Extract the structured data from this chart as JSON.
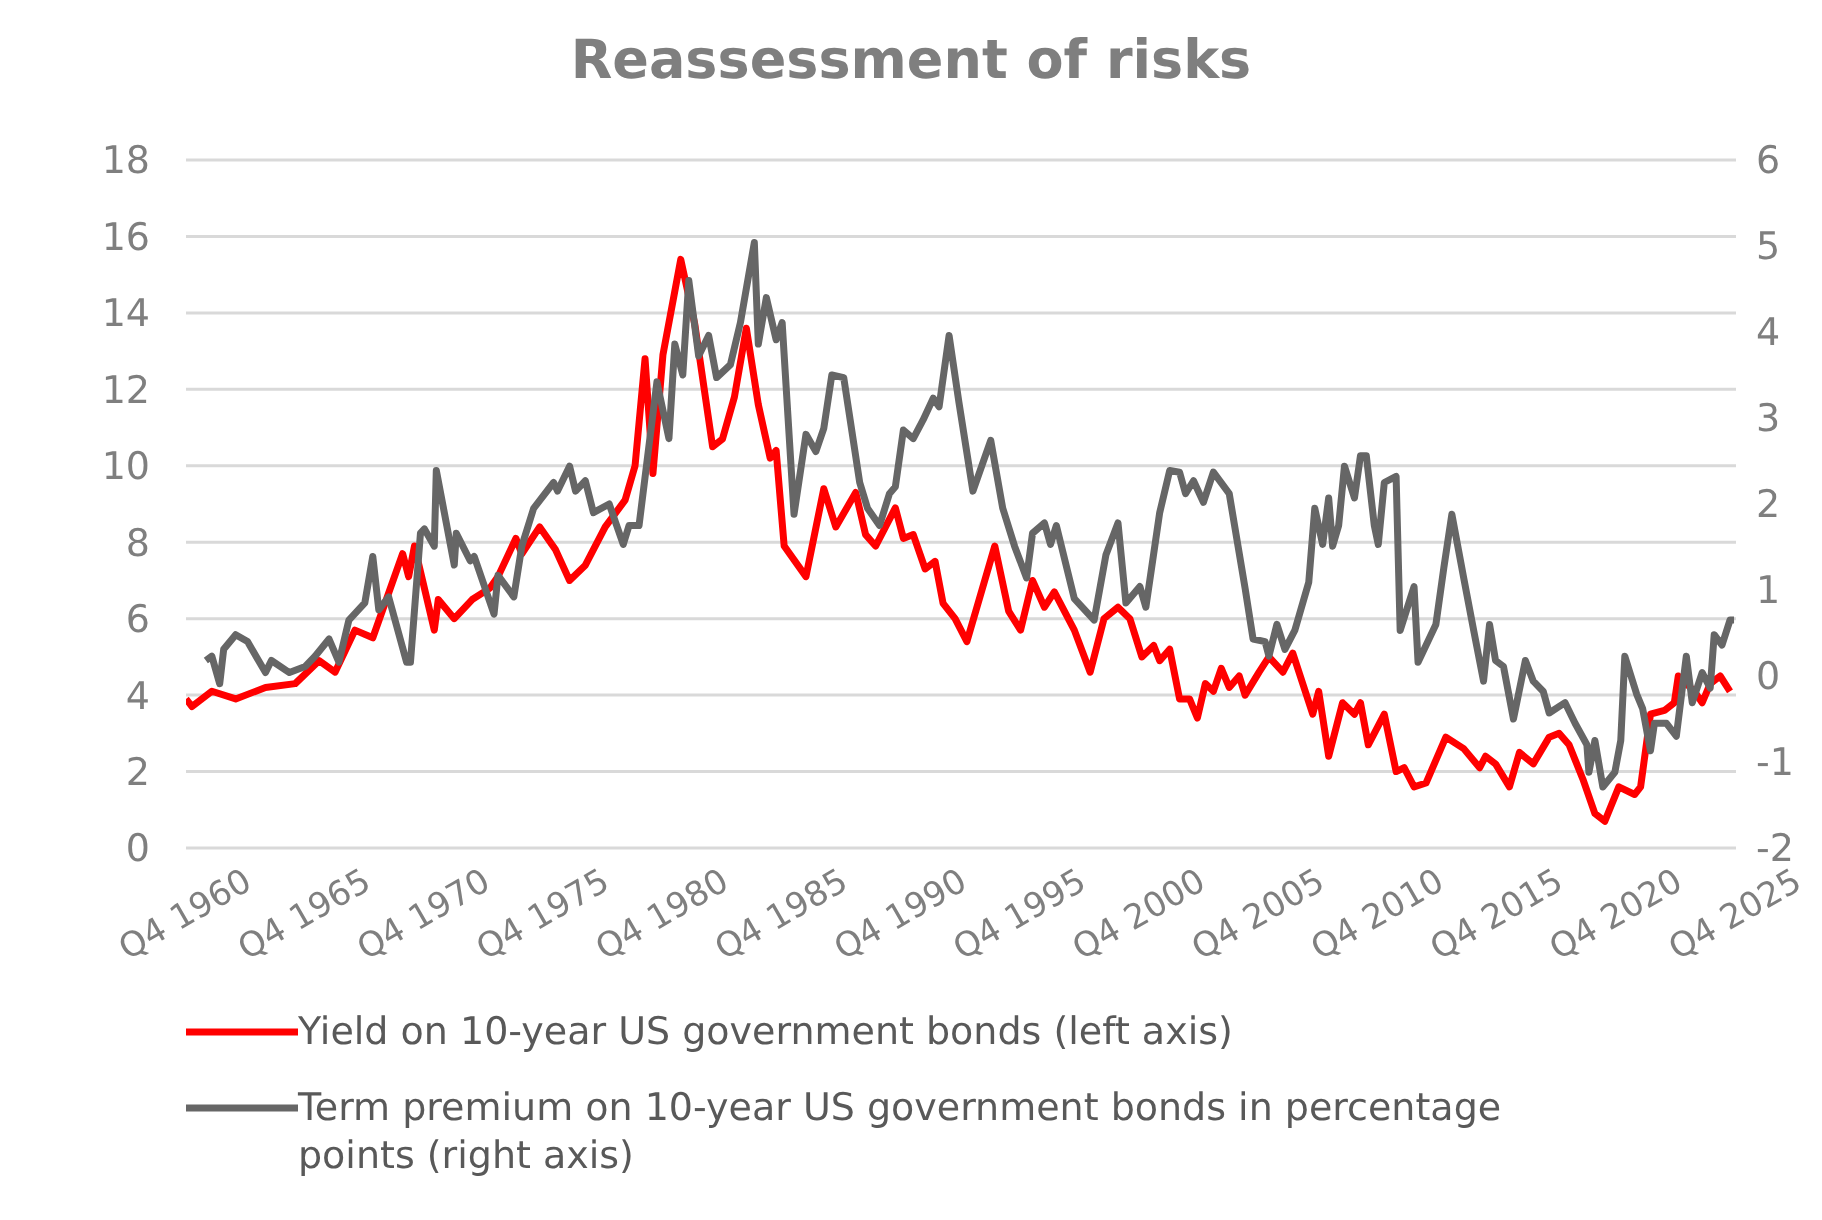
{
  "chart_data": {
    "type": "line",
    "title": "Reassessment of risks",
    "xlim": [
      "1960-10",
      "2025-10"
    ],
    "xticks": [
      {
        "value": "1960-10",
        "label": "Q4 1960"
      },
      {
        "value": "1965-10",
        "label": "Q4 1965"
      },
      {
        "value": "1970-10",
        "label": "Q4 1970"
      },
      {
        "value": "1975-10",
        "label": "Q4 1975"
      },
      {
        "value": "1980-10",
        "label": "Q4 1980"
      },
      {
        "value": "1985-10",
        "label": "Q4 1985"
      },
      {
        "value": "1990-10",
        "label": "Q4 1990"
      },
      {
        "value": "1995-10",
        "label": "Q4 1995"
      },
      {
        "value": "2000-10",
        "label": "Q4 2000"
      },
      {
        "value": "2005-10",
        "label": "Q4 2005"
      },
      {
        "value": "2010-10",
        "label": "Q4 2010"
      },
      {
        "value": "2015-10",
        "label": "Q4 2015"
      },
      {
        "value": "2020-10",
        "label": "Q4 2020"
      },
      {
        "value": "2025-10",
        "label": "Q4 2025"
      }
    ],
    "ylim": [
      0,
      18
    ],
    "yticks": [
      0,
      2,
      4,
      6,
      8,
      10,
      12,
      14,
      16,
      18
    ],
    "y2lim": [
      -2,
      6
    ],
    "y2ticks": [
      -2,
      -1,
      0,
      1,
      2,
      3,
      4,
      5,
      6
    ],
    "grid": "y",
    "legend": "bottom",
    "marker": "none",
    "line_style": "solid",
    "series": [
      {
        "name": "Yield on 10-year US government bonds (left axis)",
        "color": "#ff0000",
        "x": [
          "1960-10",
          "1961-01",
          "1961-11",
          "1962-11",
          "1964-02",
          "1965-05",
          "1966-05",
          "1967-01",
          "1967-11",
          "1968-08",
          "1969-11",
          "1970-02",
          "1970-05",
          "1971-03",
          "1971-05",
          "1972-01",
          "1972-10",
          "1973-07",
          "1973-11",
          "1974-08",
          "1974-11",
          "1975-08",
          "1976-04",
          "1976-11",
          "1977-07",
          "1978-05",
          "1979-03",
          "1979-08",
          "1980-01",
          "1980-05",
          "1980-10",
          "1981-07",
          "1982-02",
          "1982-11",
          "1983-04",
          "1983-10",
          "1984-04",
          "1984-10",
          "1985-04",
          "1985-07",
          "1985-11",
          "1986-10",
          "1987-07",
          "1988-01",
          "1988-11",
          "1989-04",
          "1989-09",
          "1990-07",
          "1990-11",
          "1991-04",
          "1991-10",
          "1992-03",
          "1992-07",
          "1993-01",
          "1993-07",
          "1994-09",
          "1995-04",
          "1995-10",
          "1996-04",
          "1996-10",
          "1997-03",
          "1998-01",
          "1998-09",
          "1999-04",
          "1999-11",
          "2000-05",
          "2000-11",
          "2001-05",
          "2001-08",
          "2002-01",
          "2002-06",
          "2002-11",
          "2003-03",
          "2003-07",
          "2003-11",
          "2004-03",
          "2004-07",
          "2004-12",
          "2005-03",
          "2005-10",
          "2006-03",
          "2006-10",
          "2007-03",
          "2008-01",
          "2008-04",
          "2008-09",
          "2009-04",
          "2009-10",
          "2010-01",
          "2010-05",
          "2011-01",
          "2011-07",
          "2011-11",
          "2012-04",
          "2012-10",
          "2013-08",
          "2014-05",
          "2015-01",
          "2015-04",
          "2015-09",
          "2016-04",
          "2016-09",
          "2017-04",
          "2017-12",
          "2018-05",
          "2018-10",
          "2019-05",
          "2019-11",
          "2020-04",
          "2020-11",
          "2021-07",
          "2021-10",
          "2022-03",
          "2022-10",
          "2023-03",
          "2023-05",
          "2024-01",
          "2024-05",
          "2024-09",
          "2025-02",
          "2025-07"
        ],
        "values": [
          3.9,
          3.7,
          4.1,
          3.9,
          4.2,
          4.3,
          4.9,
          4.6,
          5.7,
          5.5,
          7.7,
          7.1,
          7.9,
          5.7,
          6.5,
          6.0,
          6.5,
          6.8,
          7.1,
          8.1,
          7.7,
          8.4,
          7.8,
          7.0,
          7.4,
          8.4,
          9.1,
          10.0,
          12.8,
          9.8,
          12.9,
          15.4,
          13.7,
          10.5,
          10.7,
          11.8,
          13.6,
          11.6,
          10.2,
          10.4,
          7.9,
          7.1,
          9.4,
          8.4,
          9.3,
          8.2,
          7.9,
          8.9,
          8.1,
          8.2,
          7.3,
          7.5,
          6.4,
          6.0,
          5.4,
          7.9,
          6.2,
          5.7,
          7.0,
          6.3,
          6.7,
          5.7,
          4.6,
          6.0,
          6.3,
          6.0,
          5.0,
          5.3,
          4.9,
          5.2,
          3.9,
          3.9,
          3.4,
          4.3,
          4.1,
          4.7,
          4.2,
          4.5,
          4.0,
          4.6,
          5.0,
          4.6,
          5.1,
          3.5,
          4.1,
          2.4,
          3.8,
          3.5,
          3.8,
          2.7,
          3.5,
          2.0,
          2.1,
          1.6,
          1.7,
          2.9,
          2.6,
          2.1,
          2.4,
          2.2,
          1.6,
          2.5,
          2.2,
          2.9,
          3.0,
          2.7,
          1.8,
          0.9,
          0.7,
          1.6,
          1.4,
          1.6,
          3.5,
          3.6,
          3.8,
          4.5,
          4.1,
          3.8,
          4.3,
          4.5,
          4.1
        ]
      },
      {
        "name": "Term premium on 10-year US government bonds in percentage points (right axis)",
        "color": "#666666",
        "axis": "y2",
        "x": [
          "1961-08",
          "1961-11",
          "1962-03",
          "1962-05",
          "1962-11",
          "1963-05",
          "1964-02",
          "1964-05",
          "1965-02",
          "1965-10",
          "1966-03",
          "1966-10",
          "1967-03",
          "1967-08",
          "1968-04",
          "1968-08",
          "1968-11",
          "1969-04",
          "1970-01",
          "1970-03",
          "1970-08",
          "1970-10",
          "1971-03",
          "1971-04",
          "1972-01",
          "1972-02",
          "1972-09",
          "1972-11",
          "1973-09",
          "1973-11",
          "1974-07",
          "1974-11",
          "1975-05",
          "1976-03",
          "1976-05",
          "1976-11",
          "1977-02",
          "1977-07",
          "1977-11",
          "1978-07",
          "1979-02",
          "1979-05",
          "1979-10",
          "1980-07",
          "1981-01",
          "1981-04",
          "1981-08",
          "1981-11",
          "1982-04",
          "1982-09",
          "1983-01",
          "1983-08",
          "1984-01",
          "1984-08",
          "1984-10",
          "1985-02",
          "1985-07",
          "1985-10",
          "1986-04",
          "1986-10",
          "1987-03",
          "1987-07",
          "1987-11",
          "1988-05",
          "1989-01",
          "1989-05",
          "1989-11",
          "1990-04",
          "1990-07",
          "1990-11",
          "1991-04",
          "1991-09",
          "1992-02",
          "1992-05",
          "1992-10",
          "1993-03",
          "1993-10",
          "1994-07",
          "1995-01",
          "1995-07",
          "1996-01",
          "1996-04",
          "1996-10",
          "1997-01",
          "1997-04",
          "1998-01",
          "1998-11",
          "1999-05",
          "1999-11",
          "2000-03",
          "2000-10",
          "2001-01",
          "2001-08",
          "2002-01",
          "2002-06",
          "2002-09",
          "2003-01",
          "2003-06",
          "2003-11",
          "2004-07",
          "2005-03",
          "2005-07",
          "2006-01",
          "2006-03",
          "2006-07",
          "2006-11",
          "2007-04",
          "2007-11",
          "2008-02",
          "2008-06",
          "2008-09",
          "2008-11",
          "2009-02",
          "2009-05",
          "2009-10",
          "2010-01",
          "2010-04",
          "2010-08",
          "2010-10",
          "2011-01",
          "2011-07",
          "2011-09",
          "2012-04",
          "2012-06",
          "2013-03",
          "2013-07",
          "2013-11",
          "2014-05",
          "2014-10",
          "2015-03",
          "2015-06",
          "2015-09",
          "2016-01",
          "2016-06",
          "2016-12",
          "2017-04",
          "2017-09",
          "2017-12",
          "2018-08",
          "2019-01",
          "2019-07",
          "2019-08",
          "2019-11",
          "2020-03",
          "2020-09",
          "2020-12",
          "2021-02",
          "2021-08",
          "2021-11",
          "2022-03",
          "2022-05",
          "2022-11",
          "2023-04",
          "2023-09",
          "2023-12",
          "2024-05",
          "2024-09",
          "2024-11",
          "2025-03",
          "2025-07",
          "2025-09"
        ],
        "values": [
          0.18,
          0.23,
          -0.09,
          0.31,
          0.48,
          0.4,
          0.04,
          0.18,
          0.04,
          0.11,
          0.23,
          0.43,
          0.16,
          0.65,
          0.85,
          1.39,
          0.77,
          0.92,
          0.16,
          0.16,
          1.66,
          1.71,
          1.51,
          2.39,
          1.29,
          1.66,
          1.34,
          1.39,
          0.72,
          1.17,
          0.92,
          1.51,
          1.95,
          2.25,
          2.15,
          2.44,
          2.15,
          2.27,
          1.9,
          2.0,
          1.53,
          1.75,
          1.75,
          3.42,
          2.76,
          3.86,
          3.5,
          4.6,
          3.72,
          3.96,
          3.47,
          3.62,
          4.11,
          5.04,
          3.86,
          4.4,
          3.91,
          4.11,
          1.88,
          2.81,
          2.61,
          2.88,
          3.5,
          3.47,
          2.25,
          1.95,
          1.75,
          2.12,
          2.2,
          2.86,
          2.76,
          2.98,
          3.23,
          3.13,
          3.96,
          3.18,
          2.15,
          2.74,
          1.95,
          1.51,
          1.14,
          1.66,
          1.78,
          1.53,
          1.75,
          0.9,
          0.65,
          1.41,
          1.78,
          0.85,
          1.04,
          0.8,
          1.9,
          2.39,
          2.37,
          2.12,
          2.27,
          2.02,
          2.37,
          2.12,
          1.02,
          0.43,
          0.4,
          0.23,
          0.6,
          0.31,
          0.53,
          1.09,
          1.95,
          1.53,
          2.07,
          1.51,
          1.75,
          2.44,
          2.07,
          2.56,
          2.56,
          1.75,
          1.53,
          2.25,
          2.32,
          0.53,
          1.04,
          0.16,
          0.6,
          1.26,
          1.88,
          1.14,
          0.53,
          -0.06,
          0.6,
          0.18,
          0.11,
          -0.5,
          0.18,
          -0.06,
          -0.18,
          -0.43,
          -0.31,
          -0.55,
          -0.8,
          -1.12,
          -0.75,
          -1.29,
          -1.12,
          -0.75,
          0.23,
          -0.21,
          -0.38,
          -0.87,
          -0.55,
          -0.55,
          -0.7,
          0.23,
          -0.31,
          0.04,
          -0.14,
          0.48,
          0.36,
          0.65,
          0.65
        ]
      }
    ]
  }
}
